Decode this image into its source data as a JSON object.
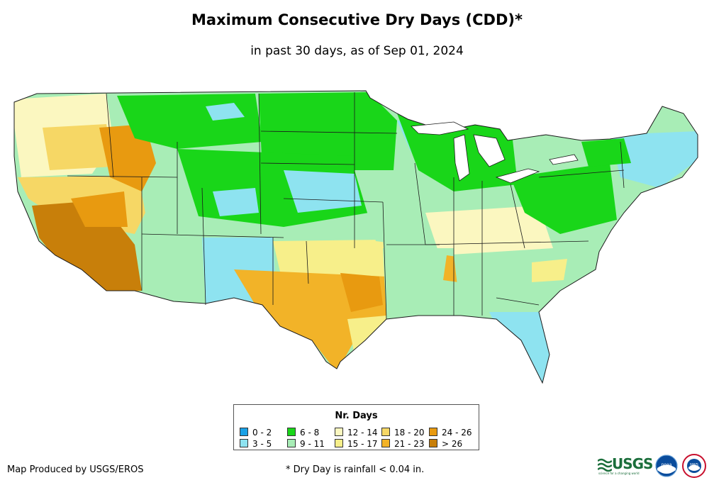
{
  "header": {
    "title": "Maximum Consecutive Dry Days (CDD)*",
    "subtitle": "in past 30 days, as of Sep 01, 2024"
  },
  "legend": {
    "title": "Nr. Days",
    "items": [
      {
        "label": "0 - 2",
        "color": "#1aa1e6"
      },
      {
        "label": "3 - 5",
        "color": "#8ee3f0"
      },
      {
        "label": "6 - 8",
        "color": "#19d619"
      },
      {
        "label": "9 - 11",
        "color": "#a8edb6"
      },
      {
        "label": "12 - 14",
        "color": "#fbf7c0"
      },
      {
        "label": "15 - 17",
        "color": "#f7ef8a"
      },
      {
        "label": "18 - 20",
        "color": "#f6d765"
      },
      {
        "label": "21 - 23",
        "color": "#f2b328"
      },
      {
        "label": "24 - 26",
        "color": "#e89a10"
      },
      {
        "label": "> 26",
        "color": "#c87f0a"
      }
    ]
  },
  "footer": {
    "credit": "Map Produced by USGS/EROS",
    "footnote": "* Dry Day is rainfall < 0.04 in."
  },
  "logos": {
    "usgs": {
      "text": "USGS",
      "tagline": "science for a changing world"
    },
    "noaa": {
      "text": "noaa"
    },
    "nws": {
      "text": "NWS"
    }
  }
}
